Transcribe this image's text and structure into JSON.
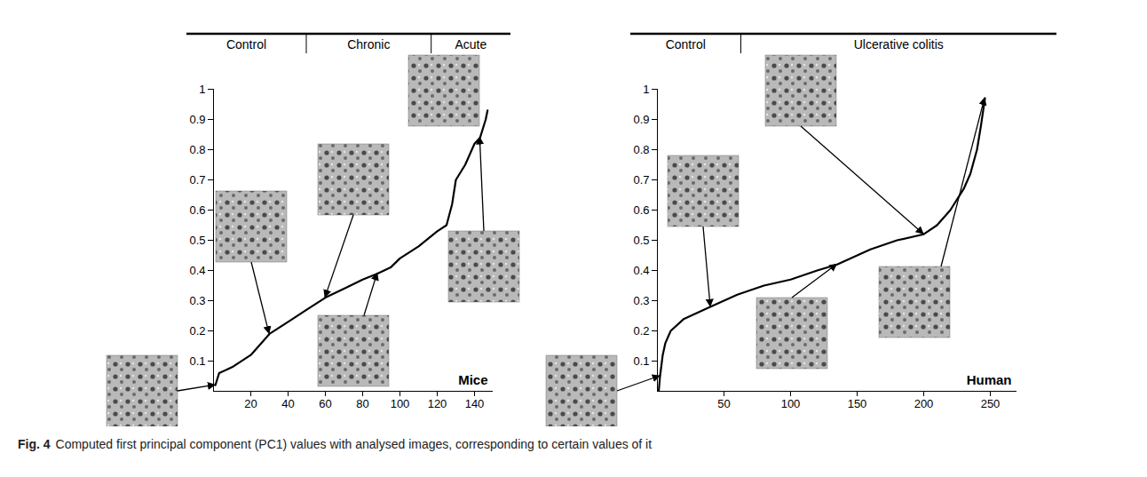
{
  "chart_data": [
    {
      "type": "line",
      "title": "Mice",
      "color": "#000000",
      "groups": [
        {
          "name": "Control",
          "start": 0,
          "end": 50
        },
        {
          "name": "Chronic",
          "start": 50,
          "end": 117
        },
        {
          "name": "Acute",
          "start": 117,
          "end": 150
        }
      ],
      "x": [
        1,
        3,
        10,
        20,
        30,
        40,
        50,
        60,
        70,
        80,
        88,
        95,
        100,
        110,
        120,
        125,
        128,
        130,
        135,
        140,
        143,
        146,
        147
      ],
      "values": [
        0.02,
        0.06,
        0.08,
        0.12,
        0.19,
        0.23,
        0.27,
        0.31,
        0.34,
        0.37,
        0.39,
        0.41,
        0.44,
        0.48,
        0.53,
        0.55,
        0.62,
        0.7,
        0.75,
        0.82,
        0.84,
        0.9,
        0.93
      ],
      "xlim": [
        0,
        150
      ],
      "xticks": [
        20,
        40,
        60,
        80,
        100,
        120,
        140
      ],
      "ylim": [
        0,
        1
      ],
      "yticks": [
        0.1,
        0.2,
        0.3,
        0.4,
        0.5,
        0.6,
        0.7,
        0.8,
        0.9,
        1
      ],
      "grid": false
    },
    {
      "type": "line",
      "title": "Human",
      "color": "#000000",
      "groups": [
        {
          "name": "Control",
          "start": 0,
          "end": 63
        },
        {
          "name": "Ulcerative colitis",
          "start": 63,
          "end": 270
        }
      ],
      "x": [
        1,
        2,
        4,
        6,
        10,
        20,
        40,
        60,
        80,
        100,
        120,
        135,
        160,
        180,
        200,
        210,
        220,
        230,
        235,
        240,
        243,
        246
      ],
      "values": [
        0.0,
        0.05,
        0.12,
        0.16,
        0.2,
        0.24,
        0.28,
        0.32,
        0.35,
        0.37,
        0.4,
        0.42,
        0.47,
        0.5,
        0.52,
        0.55,
        0.6,
        0.67,
        0.72,
        0.8,
        0.88,
        0.97
      ],
      "xlim": [
        0,
        270
      ],
      "xticks": [
        50,
        100,
        150,
        200,
        250
      ],
      "ylim": [
        0,
        1
      ],
      "yticks": [
        0.1,
        0.2,
        0.3,
        0.4,
        0.5,
        0.6,
        0.7,
        0.8,
        0.9,
        1
      ],
      "grid": false
    }
  ],
  "caption": {
    "label": "Fig. 4",
    "text": "Computed first principal component (PC1) values with analysed images, corresponding to certain values of it"
  }
}
